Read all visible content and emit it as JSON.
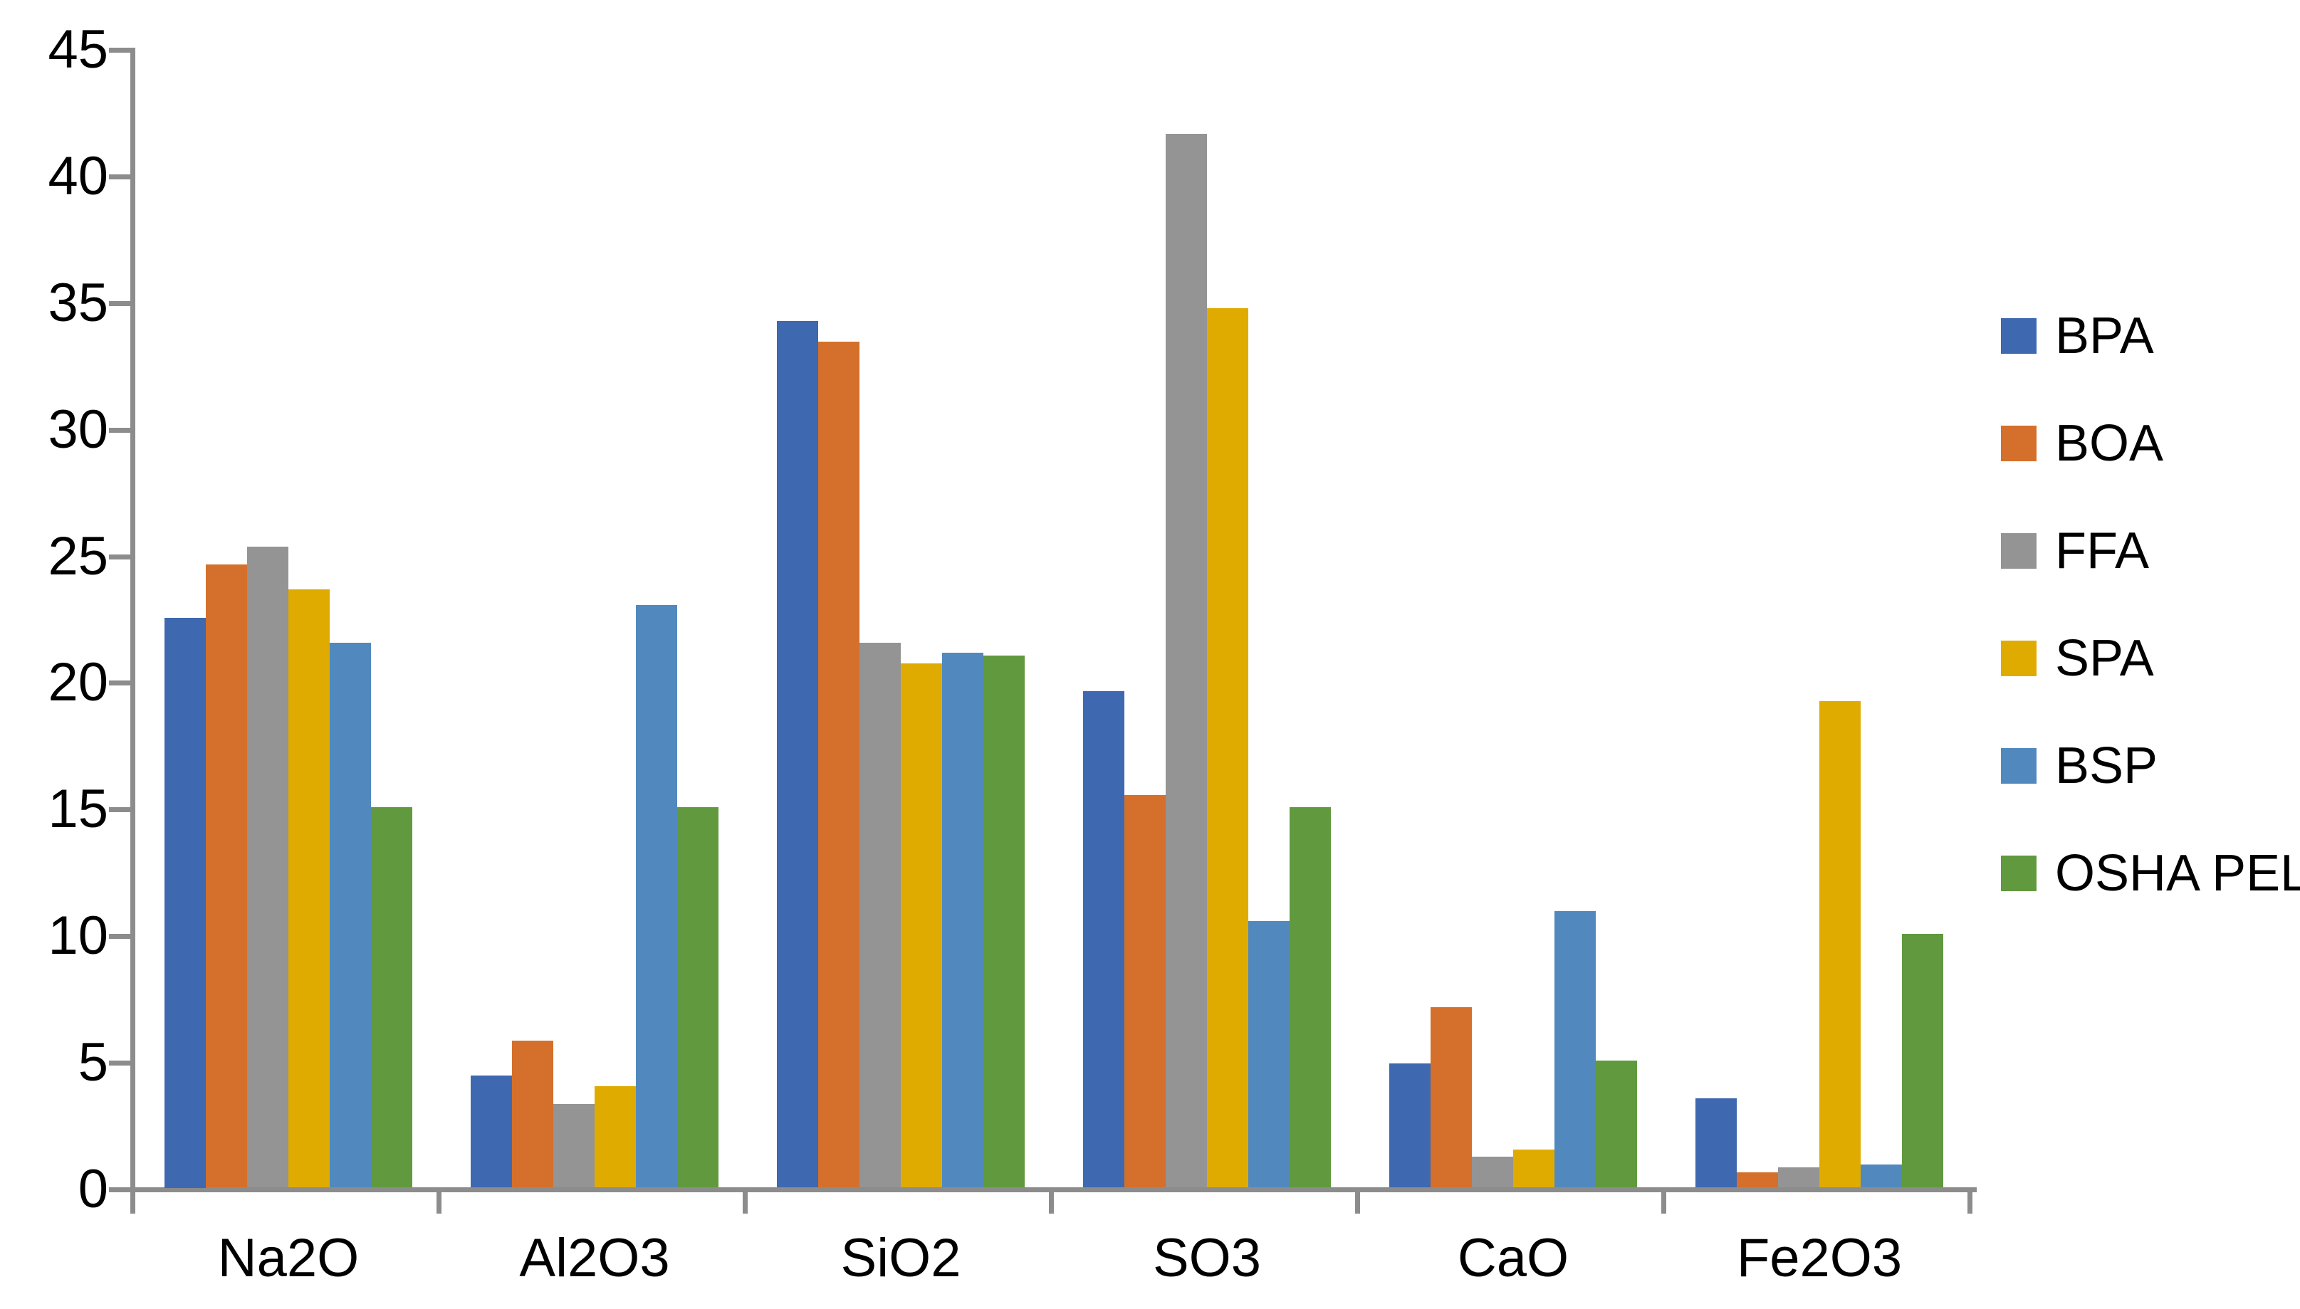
{
  "chart_data": {
    "type": "bar",
    "title": "",
    "categories": [
      "Na2O",
      "Al2O3",
      "SiO2",
      "SO3",
      "CaO",
      "Fe2O3"
    ],
    "series": [
      {
        "name": "BPA",
        "color": "#3e68b0",
        "values": [
          22.5,
          4.4,
          34.2,
          19.6,
          4.9,
          3.5
        ]
      },
      {
        "name": "BOA",
        "color": "#d4702b",
        "values": [
          24.6,
          5.8,
          33.4,
          15.5,
          7.1,
          0.6
        ]
      },
      {
        "name": "FFA",
        "color": "#949494",
        "values": [
          25.3,
          3.3,
          21.5,
          41.6,
          1.2,
          0.8
        ]
      },
      {
        "name": "SPA",
        "color": "#e0ab00",
        "values": [
          23.6,
          4.0,
          20.7,
          34.7,
          1.5,
          19.2
        ]
      },
      {
        "name": "BSP",
        "color": "#5189be",
        "values": [
          21.5,
          23.0,
          21.1,
          10.5,
          10.9,
          0.9
        ]
      },
      {
        "name": "OSHA PEL",
        "color": "#61993e",
        "values": [
          15.0,
          15.0,
          21.0,
          15.0,
          5.0,
          10.0
        ]
      }
    ],
    "xlabel": "",
    "ylabel": "",
    "ylim": [
      0,
      45
    ],
    "y_ticks": [
      0,
      5,
      10,
      15,
      20,
      25,
      30,
      35,
      40,
      45
    ],
    "grid": false,
    "legend_position": "right",
    "axis_color": "#8c8c8c",
    "text_color": "#000000"
  }
}
